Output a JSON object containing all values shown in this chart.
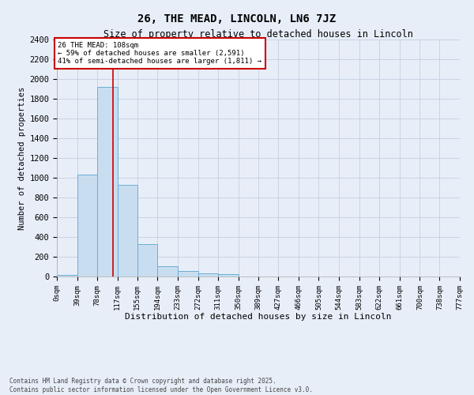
{
  "title": "26, THE MEAD, LINCOLN, LN6 7JZ",
  "subtitle": "Size of property relative to detached houses in Lincoln",
  "xlabel": "Distribution of detached houses by size in Lincoln",
  "ylabel": "Number of detached properties",
  "bin_edges": [
    0,
    39,
    78,
    117,
    155,
    194,
    233,
    272,
    311,
    350,
    389,
    427,
    466,
    505,
    544,
    583,
    622,
    661,
    700,
    738,
    777
  ],
  "bar_heights": [
    15,
    1030,
    1920,
    930,
    325,
    105,
    55,
    30,
    25,
    0,
    0,
    0,
    0,
    0,
    0,
    0,
    0,
    0,
    0,
    0
  ],
  "bar_color": "#c9ddf0",
  "bar_edge_color": "#6baed6",
  "grid_color": "#c8d4e4",
  "background_color": "#e8eef8",
  "red_line_x": 108,
  "annotation_text": "26 THE MEAD: 108sqm\n← 59% of detached houses are smaller (2,591)\n41% of semi-detached houses are larger (1,811) →",
  "annotation_box_color": "#ffffff",
  "annotation_border_color": "#cc0000",
  "ylim": [
    0,
    2400
  ],
  "yticks": [
    0,
    200,
    400,
    600,
    800,
    1000,
    1200,
    1400,
    1600,
    1800,
    2000,
    2200,
    2400
  ],
  "footer": "Contains HM Land Registry data © Crown copyright and database right 2025.\nContains public sector information licensed under the Open Government Licence v3.0.",
  "tick_labels": [
    "0sqm",
    "39sqm",
    "78sqm",
    "117sqm",
    "155sqm",
    "194sqm",
    "233sqm",
    "272sqm",
    "311sqm",
    "350sqm",
    "389sqm",
    "427sqm",
    "466sqm",
    "505sqm",
    "544sqm",
    "583sqm",
    "622sqm",
    "661sqm",
    "700sqm",
    "738sqm",
    "777sqm"
  ]
}
